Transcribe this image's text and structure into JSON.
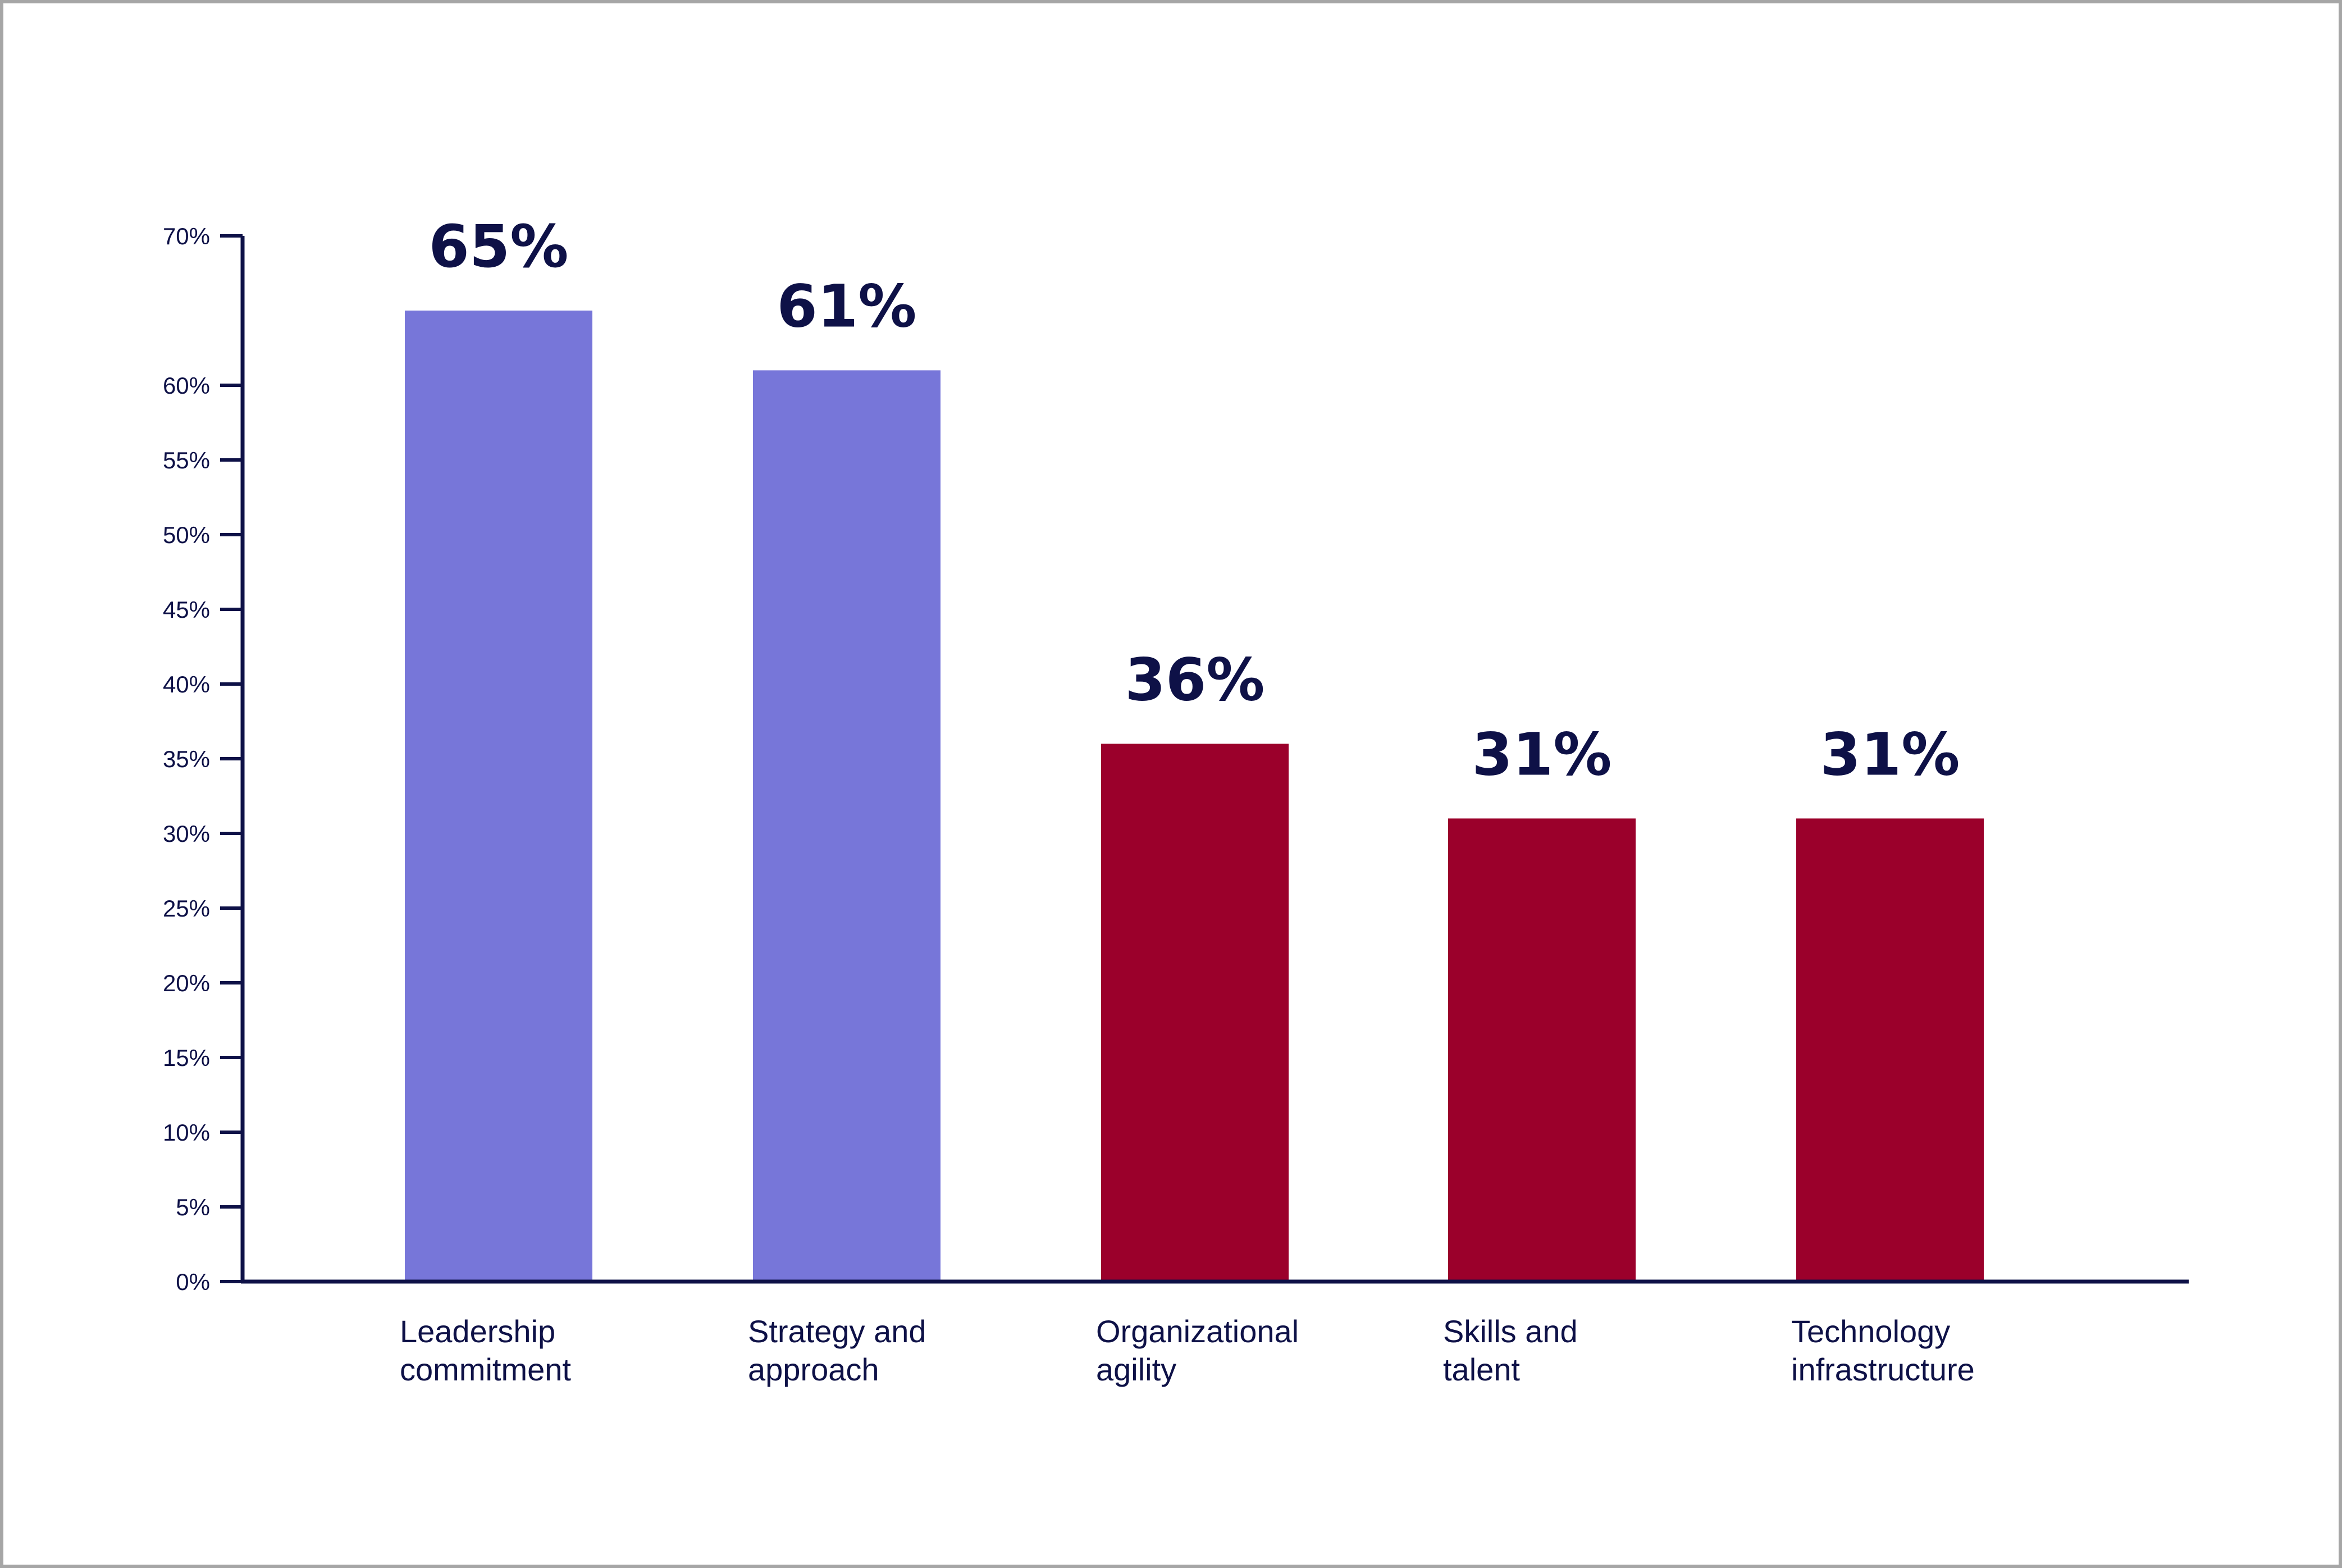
{
  "chart_data": {
    "type": "bar",
    "title": "",
    "xlabel": "",
    "ylabel": "",
    "ylim": [
      0,
      70
    ],
    "yticks": [
      "0%",
      "5%",
      "10%",
      "15%",
      "20%",
      "25%",
      "30%",
      "35%",
      "40%",
      "45%",
      "50%",
      "55%",
      "60%",
      "70%"
    ],
    "categories": [
      [
        "Leadership",
        "commitment"
      ],
      [
        "Strategy and",
        "approach"
      ],
      [
        "Organizational",
        "agility"
      ],
      [
        "Skills and",
        "talent"
      ],
      [
        "Technology",
        "infrastructure"
      ]
    ],
    "values": [
      65,
      61,
      36,
      31,
      31
    ],
    "value_labels": [
      "65%",
      "61%",
      "36%",
      "31%",
      "31%"
    ],
    "bar_colors": [
      "#7776d9",
      "#7776d9",
      "#9b002b",
      "#9b002b",
      "#9b002b"
    ],
    "axis_color": "#0e1147",
    "grid": false
  }
}
